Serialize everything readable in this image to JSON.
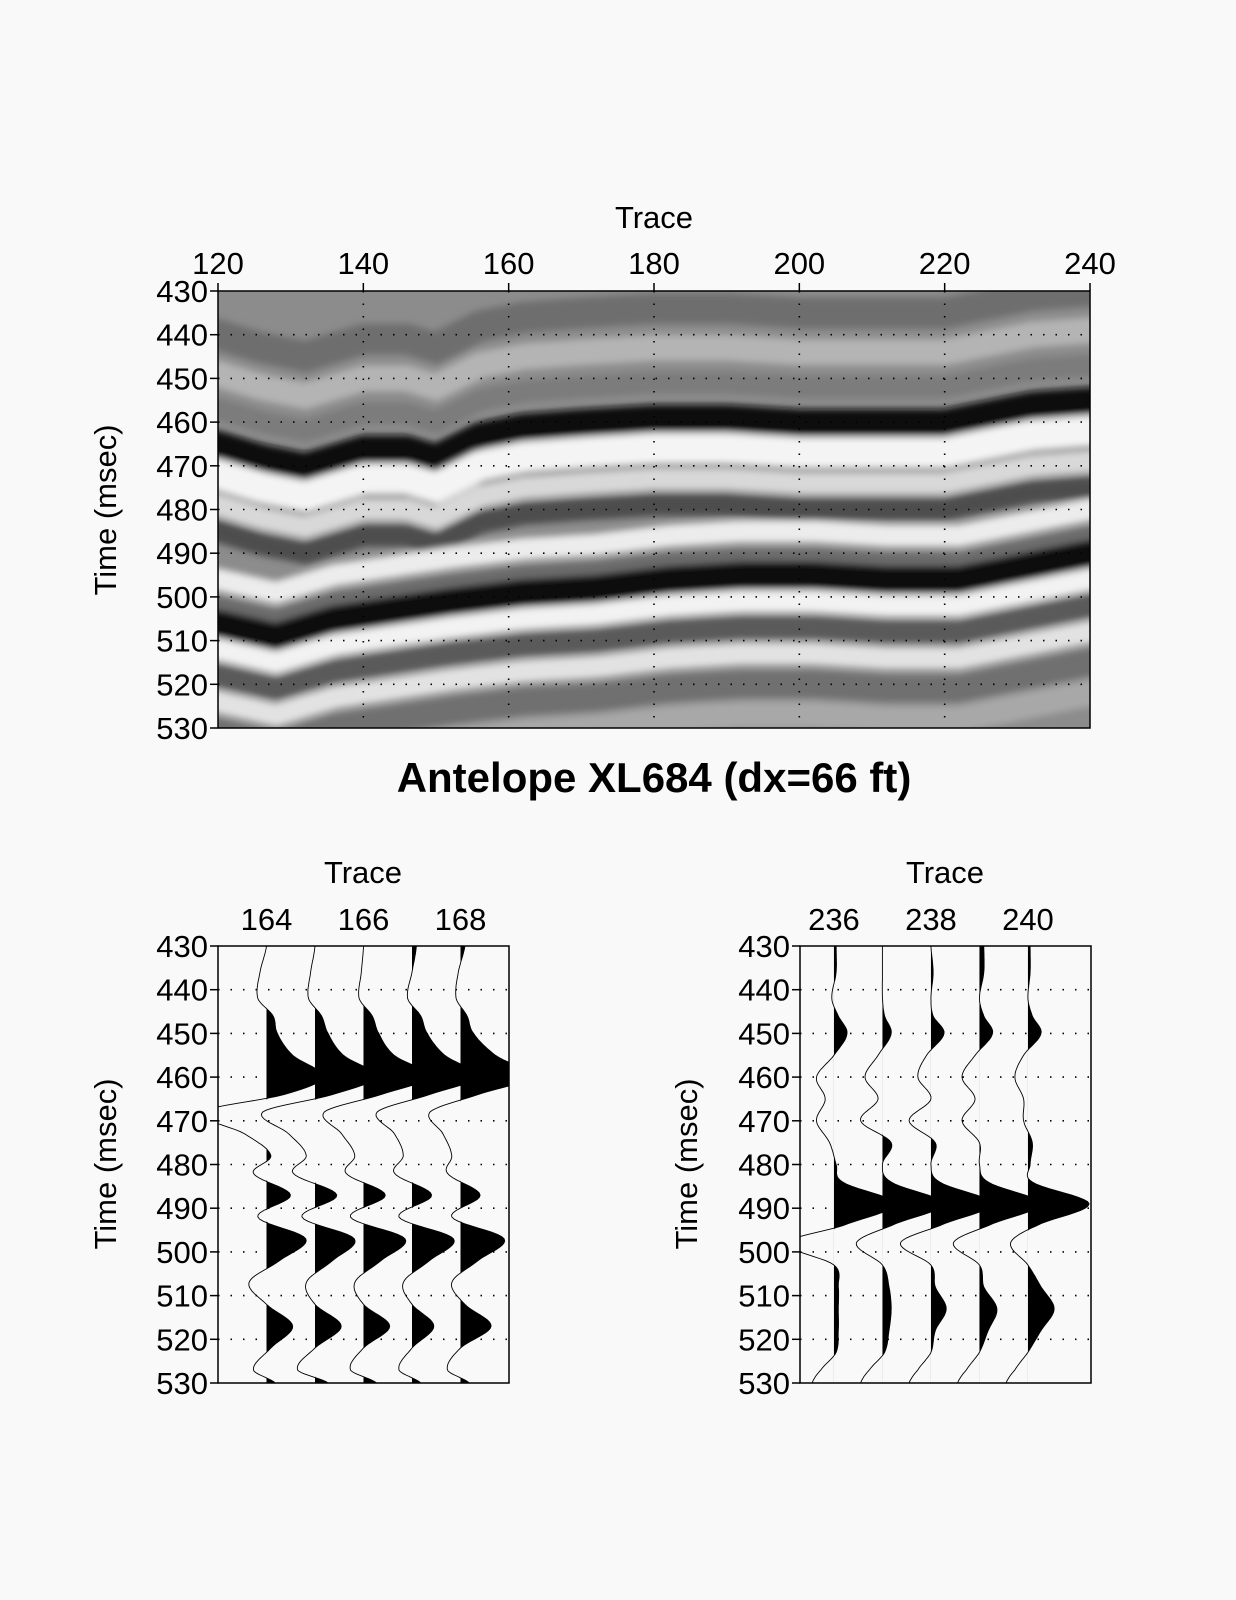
{
  "chart_data": [
    {
      "id": "section",
      "type": "heatmap",
      "xlabel": "Trace",
      "ylabel": "Time (msec)",
      "xlim": [
        120,
        240
      ],
      "ylim": [
        430,
        530
      ],
      "x_ticks": [
        120,
        140,
        160,
        180,
        200,
        220,
        240
      ],
      "y_ticks": [
        430,
        440,
        450,
        460,
        470,
        480,
        490,
        500,
        510,
        520,
        530
      ],
      "colormap": "grayscale (black = positive amplitude, white = negative)",
      "grid": "dotted",
      "horizons": [
        {
          "name": "dark",
          "points": [
            [
              120,
              465
            ],
            [
              126,
              468
            ],
            [
              132,
              470
            ],
            [
              140,
              466
            ],
            [
              146,
              466
            ],
            [
              150,
              468
            ],
            [
              156,
              463
            ],
            [
              162,
              461
            ],
            [
              170,
              460
            ],
            [
              180,
              459
            ],
            [
              190,
              459
            ],
            [
              200,
              460
            ],
            [
              210,
              460
            ],
            [
              220,
              460
            ],
            [
              226,
              458
            ],
            [
              232,
              456
            ],
            [
              240,
              455
            ]
          ]
        },
        {
          "name": "dark",
          "points": [
            [
              120,
              506
            ],
            [
              128,
              509
            ],
            [
              136,
              505
            ],
            [
              144,
              503
            ],
            [
              152,
              501
            ],
            [
              162,
              499
            ],
            [
              172,
              498
            ],
            [
              182,
              496
            ],
            [
              192,
              495
            ],
            [
              202,
              495
            ],
            [
              212,
              496
            ],
            [
              222,
              496
            ],
            [
              228,
              494
            ],
            [
              234,
              492
            ],
            [
              240,
              490
            ]
          ]
        }
      ]
    },
    {
      "id": "wiggle-left",
      "type": "line",
      "xlabel": "Trace",
      "ylabel": "Time (msec)",
      "x_ticks": [
        164,
        166,
        168
      ],
      "y_ticks": [
        430,
        440,
        450,
        460,
        470,
        480,
        490,
        500,
        510,
        520,
        530
      ],
      "ylim": [
        430,
        530
      ],
      "fill": "positive amplitude filled black",
      "series": [
        {
          "trace": 164,
          "times": [
            430,
            436,
            442,
            446,
            450,
            455,
            460,
            464,
            468,
            473,
            478,
            482,
            487,
            492,
            497,
            502,
            507,
            512,
            517,
            522,
            527,
            530
          ],
          "values": [
            0,
            -0.15,
            -0.2,
            0.15,
            0.25,
            0.6,
            1.3,
            0.4,
            -1.5,
            -0.5,
            0.1,
            -0.3,
            0.55,
            -0.2,
            0.9,
            0.3,
            -0.4,
            0,
            0.6,
            0.1,
            -0.3,
            0.2
          ]
        },
        {
          "trace": 165,
          "times": [
            430,
            436,
            442,
            446,
            450,
            455,
            460,
            464,
            468,
            473,
            478,
            482,
            487,
            492,
            497,
            502,
            507,
            512,
            517,
            522,
            527,
            530
          ],
          "values": [
            0,
            -0.1,
            -0.15,
            0.15,
            0.3,
            0.65,
            1.4,
            0.4,
            -1.2,
            -0.6,
            -0.2,
            -0.5,
            0.5,
            -0.3,
            0.9,
            0.4,
            -0.2,
            0,
            0.6,
            0,
            -0.4,
            0.3
          ]
        },
        {
          "trace": 166,
          "times": [
            430,
            436,
            442,
            446,
            450,
            455,
            460,
            464,
            468,
            473,
            478,
            482,
            487,
            492,
            497,
            502,
            507,
            512,
            517,
            522,
            527,
            530
          ],
          "values": [
            0,
            -0.05,
            -0.1,
            0.2,
            0.35,
            0.7,
            1.5,
            0.4,
            -0.9,
            -0.5,
            -0.2,
            -0.4,
            0.5,
            -0.3,
            0.95,
            0.4,
            -0.2,
            0,
            0.6,
            0,
            -0.3,
            0.3
          ]
        },
        {
          "trace": 167,
          "times": [
            430,
            436,
            442,
            446,
            450,
            455,
            460,
            464,
            468,
            473,
            478,
            482,
            487,
            492,
            497,
            502,
            507,
            512,
            517,
            522,
            527,
            530
          ],
          "values": [
            0.1,
            0,
            -0.1,
            0.2,
            0.35,
            0.75,
            1.5,
            0.4,
            -0.8,
            -0.4,
            -0.2,
            -0.4,
            0.45,
            -0.3,
            0.95,
            0.4,
            -0.2,
            0,
            0.5,
            0,
            -0.3,
            0.2
          ]
        },
        {
          "trace": 168,
          "times": [
            430,
            436,
            442,
            446,
            450,
            455,
            460,
            464,
            468,
            473,
            478,
            482,
            487,
            492,
            497,
            502,
            507,
            512,
            517,
            522,
            527,
            530
          ],
          "values": [
            0.1,
            -0.05,
            -0.1,
            0.15,
            0.3,
            0.8,
            1.6,
            0.4,
            -0.7,
            -0.4,
            -0.2,
            -0.3,
            0.45,
            -0.2,
            1.0,
            0.4,
            -0.2,
            0.1,
            0.7,
            0,
            -0.3,
            0.2
          ]
        }
      ]
    },
    {
      "id": "wiggle-right",
      "type": "line",
      "xlabel": "Trace",
      "ylabel": "Time (msec)",
      "x_ticks": [
        236,
        238,
        240
      ],
      "y_ticks": [
        430,
        440,
        450,
        460,
        470,
        480,
        490,
        500,
        510,
        520,
        530
      ],
      "ylim": [
        430,
        530
      ],
      "fill": "positive amplitude filled black",
      "series": [
        {
          "trace": 236,
          "times": [
            430,
            436,
            442,
            446,
            450,
            455,
            460,
            465,
            470,
            475,
            480,
            484,
            489,
            494,
            498,
            503,
            508,
            513,
            518,
            523,
            527,
            530
          ],
          "values": [
            0.05,
            0.05,
            -0.05,
            0.1,
            0.3,
            0,
            -0.4,
            -0.2,
            -0.4,
            -0.1,
            0.05,
            0.2,
            1.4,
            0.2,
            -1.1,
            0,
            0.1,
            0.1,
            0.1,
            0.05,
            -0.3,
            -0.5
          ]
        },
        {
          "trace": 237,
          "times": [
            430,
            436,
            442,
            446,
            450,
            455,
            460,
            465,
            470,
            475,
            480,
            484,
            489,
            494,
            498,
            503,
            508,
            513,
            518,
            523,
            527,
            530
          ],
          "values": [
            0,
            0,
            0,
            0.05,
            0.2,
            -0.1,
            -0.4,
            -0.1,
            -0.5,
            0.2,
            0,
            0.2,
            1.4,
            0.2,
            -0.6,
            0,
            0.15,
            0.2,
            0.15,
            0.05,
            -0.3,
            -0.5
          ]
        },
        {
          "trace": 238,
          "times": [
            430,
            436,
            442,
            446,
            450,
            455,
            460,
            465,
            470,
            475,
            480,
            484,
            489,
            494,
            498,
            503,
            508,
            513,
            518,
            523,
            527,
            530
          ],
          "values": [
            0,
            0.05,
            0,
            0.05,
            0.3,
            -0.1,
            -0.3,
            0,
            -0.5,
            0.1,
            0,
            0.2,
            1.4,
            0.2,
            -0.7,
            0,
            0.1,
            0.35,
            0.1,
            0,
            -0.3,
            -0.5
          ]
        },
        {
          "trace": 239,
          "times": [
            430,
            436,
            442,
            446,
            450,
            455,
            460,
            465,
            470,
            475,
            480,
            484,
            489,
            494,
            498,
            503,
            508,
            513,
            518,
            523,
            527,
            530
          ],
          "values": [
            0.1,
            0.1,
            0,
            0.1,
            0.3,
            -0.1,
            -0.4,
            -0.1,
            -0.4,
            0,
            0,
            0.2,
            1.4,
            0.2,
            -0.6,
            0,
            0.1,
            0.4,
            0.2,
            0,
            -0.3,
            -0.5
          ]
        },
        {
          "trace": 240,
          "times": [
            430,
            436,
            442,
            446,
            450,
            455,
            460,
            465,
            470,
            475,
            480,
            484,
            489,
            494,
            498,
            503,
            508,
            513,
            518,
            523,
            527,
            530
          ],
          "values": [
            0.05,
            0.05,
            0,
            0.1,
            0.3,
            -0.1,
            -0.3,
            -0.1,
            -0.1,
            0.1,
            0.05,
            0.1,
            1.4,
            0.2,
            -0.4,
            0,
            0.3,
            0.6,
            0.3,
            0,
            -0.3,
            -0.5
          ]
        }
      ]
    }
  ],
  "figure": {
    "title": "Antelope XL684 (dx=66 ft)"
  }
}
